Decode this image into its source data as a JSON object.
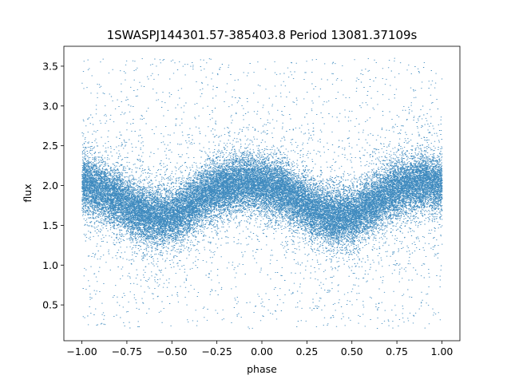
{
  "chart_data": {
    "type": "scatter",
    "title": "1SWASPJ144301.57-385403.8 Period 13081.37109s",
    "xlabel": "phase",
    "ylabel": "flux",
    "xlim": [
      -1.1,
      1.1
    ],
    "ylim": [
      0.05,
      3.75
    ],
    "grid": false,
    "legend": "none",
    "point_color": "#1f77b4",
    "x_ticks": [
      -1.0,
      -0.75,
      -0.5,
      -0.25,
      0.0,
      0.25,
      0.5,
      0.75,
      1.0
    ],
    "x_tick_labels": [
      "−1.00",
      "−0.75",
      "−0.50",
      "−0.25",
      "0.00",
      "0.25",
      "0.50",
      "0.75",
      "1.00"
    ],
    "y_ticks": [
      0.5,
      1.0,
      1.5,
      2.0,
      2.5,
      3.0,
      3.5
    ],
    "y_tick_labels": [
      "0.5",
      "1.0",
      "1.5",
      "2.0",
      "2.5",
      "3.0",
      "3.5"
    ],
    "x_range": [
      -1.0,
      1.0
    ],
    "core_profile": {
      "phase": [
        -1.0,
        -0.9,
        -0.8,
        -0.7,
        -0.6,
        -0.5,
        -0.4,
        -0.3,
        -0.2,
        -0.1,
        0.0,
        0.1,
        0.2,
        0.3,
        0.4,
        0.5,
        0.6,
        0.7,
        0.8,
        0.9,
        1.0
      ],
      "flux": [
        2.02,
        1.95,
        1.82,
        1.68,
        1.6,
        1.62,
        1.75,
        1.9,
        2.0,
        2.05,
        2.02,
        1.95,
        1.82,
        1.68,
        1.6,
        1.62,
        1.75,
        1.9,
        2.0,
        2.05,
        2.02
      ]
    },
    "core_scatter": 0.17,
    "outlier_range": [
      0.2,
      3.6
    ],
    "n_points_core": 34000,
    "n_points_outliers": 1800
  }
}
